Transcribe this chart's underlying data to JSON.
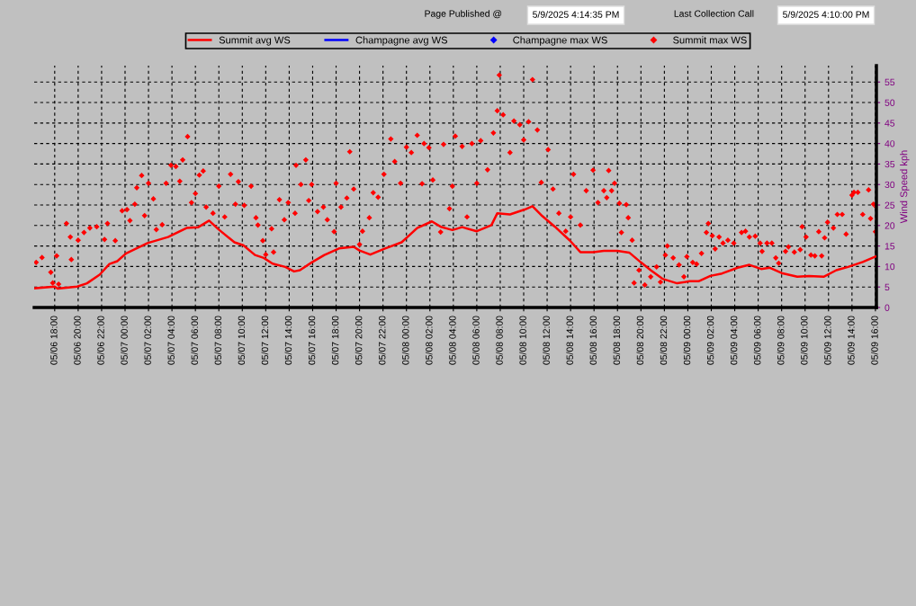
{
  "chart_data": {
    "type": "scatter",
    "annotations": [
      "Page Published @",
      "5/9/2025 4:14:35 PM",
      "Last Collection Call",
      "5/9/2025 4:10:00 PM"
    ],
    "ylabel": "Wind Speed kph",
    "xlim": [
      "2025-05-06T16:15",
      "2025-05-09T16:05"
    ],
    "xticks": [
      {
        "value": "2025-05-06T18:00",
        "label": "05/06 18:00"
      },
      {
        "value": "2025-05-06T20:00",
        "label": "05/06 20:00"
      },
      {
        "value": "2025-05-06T22:00",
        "label": "05/06 22:00"
      },
      {
        "value": "2025-05-07T00:00",
        "label": "05/07 00:00"
      },
      {
        "value": "2025-05-07T02:00",
        "label": "05/07 02:00"
      },
      {
        "value": "2025-05-07T04:00",
        "label": "05/07 04:00"
      },
      {
        "value": "2025-05-07T06:00",
        "label": "05/07 06:00"
      },
      {
        "value": "2025-05-07T08:00",
        "label": "05/07 08:00"
      },
      {
        "value": "2025-05-07T10:00",
        "label": "05/07 10:00"
      },
      {
        "value": "2025-05-07T12:00",
        "label": "05/07 12:00"
      },
      {
        "value": "2025-05-07T14:00",
        "label": "05/07 14:00"
      },
      {
        "value": "2025-05-07T16:00",
        "label": "05/07 16:00"
      },
      {
        "value": "2025-05-07T18:00",
        "label": "05/07 18:00"
      },
      {
        "value": "2025-05-07T20:00",
        "label": "05/07 20:00"
      },
      {
        "value": "2025-05-07T22:00",
        "label": "05/07 22:00"
      },
      {
        "value": "2025-05-08T00:00",
        "label": "05/08 00:00"
      },
      {
        "value": "2025-05-08T02:00",
        "label": "05/08 02:00"
      },
      {
        "value": "2025-05-08T04:00",
        "label": "05/08 04:00"
      },
      {
        "value": "2025-05-08T06:00",
        "label": "05/08 06:00"
      },
      {
        "value": "2025-05-08T08:00",
        "label": "05/08 08:00"
      },
      {
        "value": "2025-05-08T10:00",
        "label": "05/08 10:00"
      },
      {
        "value": "2025-05-08T12:00",
        "label": "05/08 12:00"
      },
      {
        "value": "2025-05-08T14:00",
        "label": "05/08 14:00"
      },
      {
        "value": "2025-05-08T16:00",
        "label": "05/08 16:00"
      },
      {
        "value": "2025-05-08T18:00",
        "label": "05/08 18:00"
      },
      {
        "value": "2025-05-08T20:00",
        "label": "05/08 20:00"
      },
      {
        "value": "2025-05-08T22:00",
        "label": "05/08 22:00"
      },
      {
        "value": "2025-05-09T00:00",
        "label": "05/09 00:00"
      },
      {
        "value": "2025-05-09T02:00",
        "label": "05/09 02:00"
      },
      {
        "value": "2025-05-09T04:00",
        "label": "05/09 04:00"
      },
      {
        "value": "2025-05-09T06:00",
        "label": "05/09 06:00"
      },
      {
        "value": "2025-05-09T08:00",
        "label": "05/09 08:00"
      },
      {
        "value": "2025-05-09T10:00",
        "label": "05/09 10:00"
      },
      {
        "value": "2025-05-09T12:00",
        "label": "05/09 12:00"
      },
      {
        "value": "2025-05-09T14:00",
        "label": "05/09 14:00"
      },
      {
        "value": "2025-05-09T16:00",
        "label": "05/09 16:00"
      }
    ],
    "ylim": [
      0,
      59
    ],
    "yticks": [
      0,
      5,
      10,
      15,
      20,
      25,
      30,
      35,
      40,
      45,
      50,
      55
    ],
    "grid": true,
    "legend": "top",
    "line_style": "solid",
    "series": [
      {
        "name": "Summit avg WS",
        "type": "line",
        "color": "#ff0000",
        "x": [
          "2025-05-06T16:20",
          "2025-05-06T18:00",
          "2025-05-06T18:15",
          "2025-05-06T19:55",
          "2025-05-06T20:45",
          "2025-05-06T21:50",
          "2025-05-06T22:40",
          "2025-05-06T23:20",
          "2025-05-07T00:05",
          "2025-05-07T01:55",
          "2025-05-07T03:40",
          "2025-05-07T05:15",
          "2025-05-07T06:15",
          "2025-05-07T07:10",
          "2025-05-07T08:00",
          "2025-05-07T09:20",
          "2025-05-07T10:05",
          "2025-05-07T11:05",
          "2025-05-07T11:50",
          "2025-05-07T12:35",
          "2025-05-07T13:40",
          "2025-05-07T14:25",
          "2025-05-07T14:55",
          "2025-05-07T15:55",
          "2025-05-07T17:00",
          "2025-05-07T18:15",
          "2025-05-07T19:30",
          "2025-05-07T20:00",
          "2025-05-07T20:55",
          "2025-05-07T22:05",
          "2025-05-07T23:35",
          "2025-05-08T00:05",
          "2025-05-08T00:55",
          "2025-05-08T02:10",
          "2025-05-08T02:55",
          "2025-05-08T03:55",
          "2025-05-08T04:45",
          "2025-05-08T06:00",
          "2025-05-08T07:15",
          "2025-05-08T07:45",
          "2025-05-08T08:50",
          "2025-05-08T10:05",
          "2025-05-08T10:45",
          "2025-05-08T11:35",
          "2025-05-08T12:40",
          "2025-05-08T13:55",
          "2025-05-08T14:50",
          "2025-05-08T15:55",
          "2025-05-08T16:50",
          "2025-05-08T18:00",
          "2025-05-08T19:00",
          "2025-05-08T20:00",
          "2025-05-08T20:50",
          "2025-05-08T21:50",
          "2025-05-08T23:05",
          "2025-05-09T00:10",
          "2025-05-09T00:55",
          "2025-05-09T01:55",
          "2025-05-09T02:55",
          "2025-05-09T04:15",
          "2025-05-09T05:15",
          "2025-05-09T06:15",
          "2025-05-09T07:00",
          "2025-05-09T08:00",
          "2025-05-09T09:20",
          "2025-05-09T10:20",
          "2025-05-09T11:35",
          "2025-05-09T12:40",
          "2025-05-09T13:40",
          "2025-05-09T14:55",
          "2025-05-09T16:00"
        ],
        "values": [
          4.7,
          5.1,
          4.6,
          5.1,
          5.9,
          8.0,
          10.6,
          11.3,
          13.2,
          15.7,
          17.2,
          19.4,
          19.6,
          21.2,
          19.0,
          15.9,
          15.2,
          12.8,
          12.1,
          10.7,
          9.9,
          8.8,
          9.1,
          11.0,
          12.8,
          14.4,
          14.8,
          13.9,
          12.9,
          14.3,
          15.9,
          17.2,
          19.4,
          21.0,
          19.7,
          18.9,
          19.6,
          18.6,
          20.1,
          23.0,
          22.7,
          23.9,
          24.7,
          22.3,
          19.7,
          16.4,
          13.5,
          13.5,
          13.8,
          13.8,
          13.4,
          11.0,
          9.1,
          7.0,
          5.9,
          6.4,
          6.4,
          7.7,
          8.3,
          9.7,
          10.4,
          9.4,
          9.7,
          8.4,
          7.5,
          7.7,
          7.5,
          9.1,
          9.9,
          11.1,
          12.4
        ]
      },
      {
        "name": "Champagne avg WS",
        "type": "line",
        "color": "#0000ff"
      },
      {
        "name": "Champagne max WS",
        "marker": "diamond",
        "color": "#0000ff"
      },
      {
        "name": "Summit max WS",
        "marker": "diamond",
        "color": "#ff0000",
        "x": [
          "2025-05-06T16:25",
          "2025-05-06T16:55",
          "2025-05-06T17:40",
          "2025-05-06T17:50",
          "2025-05-06T18:10",
          "2025-05-06T18:20",
          "2025-05-06T19:00",
          "2025-05-06T19:20",
          "2025-05-06T19:25",
          "2025-05-06T20:00",
          "2025-05-06T20:30",
          "2025-05-06T21:00",
          "2025-05-06T21:35",
          "2025-05-06T22:15",
          "2025-05-06T22:30",
          "2025-05-06T23:10",
          "2025-05-06T23:45",
          "2025-05-07T00:10",
          "2025-05-07T00:25",
          "2025-05-07T00:50",
          "2025-05-07T01:00",
          "2025-05-07T01:25",
          "2025-05-07T01:40",
          "2025-05-07T02:00",
          "2025-05-07T02:25",
          "2025-05-07T02:40",
          "2025-05-07T03:10",
          "2025-05-07T03:30",
          "2025-05-07T03:55",
          "2025-05-07T04:20",
          "2025-05-07T04:40",
          "2025-05-07T04:55",
          "2025-05-07T05:20",
          "2025-05-07T05:40",
          "2025-05-07T06:00",
          "2025-05-07T06:20",
          "2025-05-07T06:40",
          "2025-05-07T06:55",
          "2025-05-07T07:30",
          "2025-05-07T08:00",
          "2025-05-07T08:30",
          "2025-05-07T09:00",
          "2025-05-07T09:25",
          "2025-05-07T09:40",
          "2025-05-07T10:10",
          "2025-05-07T10:45",
          "2025-05-07T11:10",
          "2025-05-07T11:20",
          "2025-05-07T11:45",
          "2025-05-07T12:00",
          "2025-05-07T12:30",
          "2025-05-07T12:40",
          "2025-05-07T13:10",
          "2025-05-07T13:35",
          "2025-05-07T13:55",
          "2025-05-07T14:30",
          "2025-05-07T14:35",
          "2025-05-07T15:00",
          "2025-05-07T15:25",
          "2025-05-07T15:40",
          "2025-05-07T15:55",
          "2025-05-07T16:25",
          "2025-05-07T16:55",
          "2025-05-07T17:15",
          "2025-05-07T17:50",
          "2025-05-07T18:00",
          "2025-05-07T18:25",
          "2025-05-07T18:55",
          "2025-05-07T19:10",
          "2025-05-07T19:30",
          "2025-05-07T20:00",
          "2025-05-07T20:15",
          "2025-05-07T20:50",
          "2025-05-07T21:10",
          "2025-05-07T21:35",
          "2025-05-07T22:05",
          "2025-05-07T22:40",
          "2025-05-07T23:00",
          "2025-05-07T23:30",
          "2025-05-08T00:00",
          "2025-05-08T00:25",
          "2025-05-08T00:55",
          "2025-05-08T01:20",
          "2025-05-08T01:30",
          "2025-05-08T01:55",
          "2025-05-08T02:15",
          "2025-05-08T02:55",
          "2025-05-08T03:10",
          "2025-05-08T03:40",
          "2025-05-08T03:55",
          "2025-05-08T04:10",
          "2025-05-08T04:45",
          "2025-05-08T05:10",
          "2025-05-08T05:35",
          "2025-05-08T06:00",
          "2025-05-08T06:20",
          "2025-05-08T06:55",
          "2025-05-08T07:25",
          "2025-05-08T07:45",
          "2025-05-08T07:55",
          "2025-05-08T08:15",
          "2025-05-08T08:50",
          "2025-05-08T09:10",
          "2025-05-08T09:40",
          "2025-05-08T10:00",
          "2025-05-08T10:25",
          "2025-05-08T10:45",
          "2025-05-08T11:10",
          "2025-05-08T11:30",
          "2025-05-08T12:05",
          "2025-05-08T12:30",
          "2025-05-08T13:00",
          "2025-05-08T13:35",
          "2025-05-08T14:00",
          "2025-05-08T14:15",
          "2025-05-08T14:50",
          "2025-05-08T15:20",
          "2025-05-08T15:55",
          "2025-05-08T16:20",
          "2025-05-08T16:50",
          "2025-05-08T17:15",
          "2025-05-08T17:05",
          "2025-05-08T17:30",
          "2025-05-08T17:45",
          "2025-05-08T18:10",
          "2025-05-08T18:20",
          "2025-05-08T18:45",
          "2025-05-08T18:55",
          "2025-05-08T19:15",
          "2025-05-08T19:25",
          "2025-05-08T19:50",
          "2025-05-08T20:20",
          "2025-05-08T20:50",
          "2025-05-08T21:20",
          "2025-05-08T21:40",
          "2025-05-08T22:05",
          "2025-05-08T22:15",
          "2025-05-08T22:45",
          "2025-05-08T23:15",
          "2025-05-08T23:40",
          "2025-05-08T23:55",
          "2025-05-09T00:25",
          "2025-05-09T00:45",
          "2025-05-09T01:10",
          "2025-05-09T01:35",
          "2025-05-09T01:45",
          "2025-05-09T02:05",
          "2025-05-09T02:20",
          "2025-05-09T02:40",
          "2025-05-09T03:00",
          "2025-05-09T03:25",
          "2025-05-09T03:55",
          "2025-05-09T04:35",
          "2025-05-09T04:55",
          "2025-05-09T05:15",
          "2025-05-09T05:45",
          "2025-05-09T06:10",
          "2025-05-09T06:20",
          "2025-05-09T06:45",
          "2025-05-09T07:10",
          "2025-05-09T07:30",
          "2025-05-09T07:45",
          "2025-05-09T08:20",
          "2025-05-09T08:35",
          "2025-05-09T09:05",
          "2025-05-09T09:35",
          "2025-05-09T09:45",
          "2025-05-09T10:05",
          "2025-05-09T10:30",
          "2025-05-09T10:50",
          "2025-05-09T11:10",
          "2025-05-09T11:25",
          "2025-05-09T11:40",
          "2025-05-09T11:55",
          "2025-05-09T12:25",
          "2025-05-09T12:45",
          "2025-05-09T13:10",
          "2025-05-09T13:30",
          "2025-05-09T14:00",
          "2025-05-09T14:10",
          "2025-05-09T14:30",
          "2025-05-09T14:55",
          "2025-05-09T15:25",
          "2025-05-09T15:35",
          "2025-05-09T15:50",
          "2025-05-09T16:00",
          "2025-05-09T16:05"
        ],
        "values": [
          11.0,
          12.2,
          8.6,
          6.0,
          12.6,
          5.7,
          20.5,
          17.2,
          11.7,
          16.4,
          18.3,
          19.4,
          19.7,
          16.6,
          20.5,
          16.3,
          23.6,
          23.9,
          21.2,
          25.2,
          29.2,
          32.2,
          22.4,
          30.3,
          26.5,
          19.0,
          20.2,
          30.3,
          34.7,
          34.4,
          30.8,
          36.0,
          41.7,
          25.6,
          27.8,
          32.3,
          33.3,
          24.5,
          23.0,
          29.6,
          22.1,
          32.5,
          25.2,
          30.7,
          24.9,
          29.6,
          21.9,
          20.1,
          16.3,
          12.9,
          19.2,
          13.5,
          26.3,
          21.4,
          25.6,
          23.0,
          34.7,
          30.0,
          36.0,
          26.1,
          30.0,
          23.4,
          24.5,
          21.4,
          18.5,
          30.3,
          24.5,
          26.7,
          38.0,
          28.9,
          15.4,
          18.6,
          21.9,
          28.0,
          26.9,
          32.5,
          41.1,
          35.6,
          30.3,
          39.1,
          37.8,
          42.0,
          30.2,
          40.0,
          39.0,
          31.1,
          18.4,
          39.8,
          24.1,
          29.6,
          41.8,
          39.3,
          22.1,
          40.0,
          30.3,
          40.7,
          33.6,
          42.6,
          48.0,
          56.7,
          47.0,
          37.8,
          45.5,
          44.6,
          40.9,
          45.3,
          55.6,
          43.3,
          30.5,
          38.5,
          28.9,
          23.0,
          18.6,
          22.1,
          32.5,
          20.1,
          28.5,
          33.5,
          25.6,
          28.5,
          33.4,
          26.8,
          28.5,
          30.3,
          25.4,
          18.3,
          25.1,
          21.9,
          16.4,
          6.0,
          9.1,
          5.5,
          7.5,
          9.9,
          6.2,
          12.8,
          15.0,
          12.1,
          10.4,
          7.5,
          12.4,
          11.0,
          10.6,
          13.2,
          18.3,
          20.5,
          17.5,
          14.3,
          17.2,
          15.7,
          16.4,
          15.7,
          18.3,
          18.6,
          17.2,
          17.4,
          15.7,
          13.7,
          15.7,
          15.7,
          12.1,
          10.8,
          13.7,
          14.8,
          13.5,
          14.1,
          19.7,
          17.2,
          12.8,
          12.6,
          18.5,
          12.6,
          17.0,
          20.8,
          19.4,
          22.7,
          22.7,
          17.9,
          27.4,
          28.1,
          28.1,
          22.7,
          28.7,
          21.7,
          25.2,
          18.5,
          24.5
        ]
      }
    ]
  }
}
